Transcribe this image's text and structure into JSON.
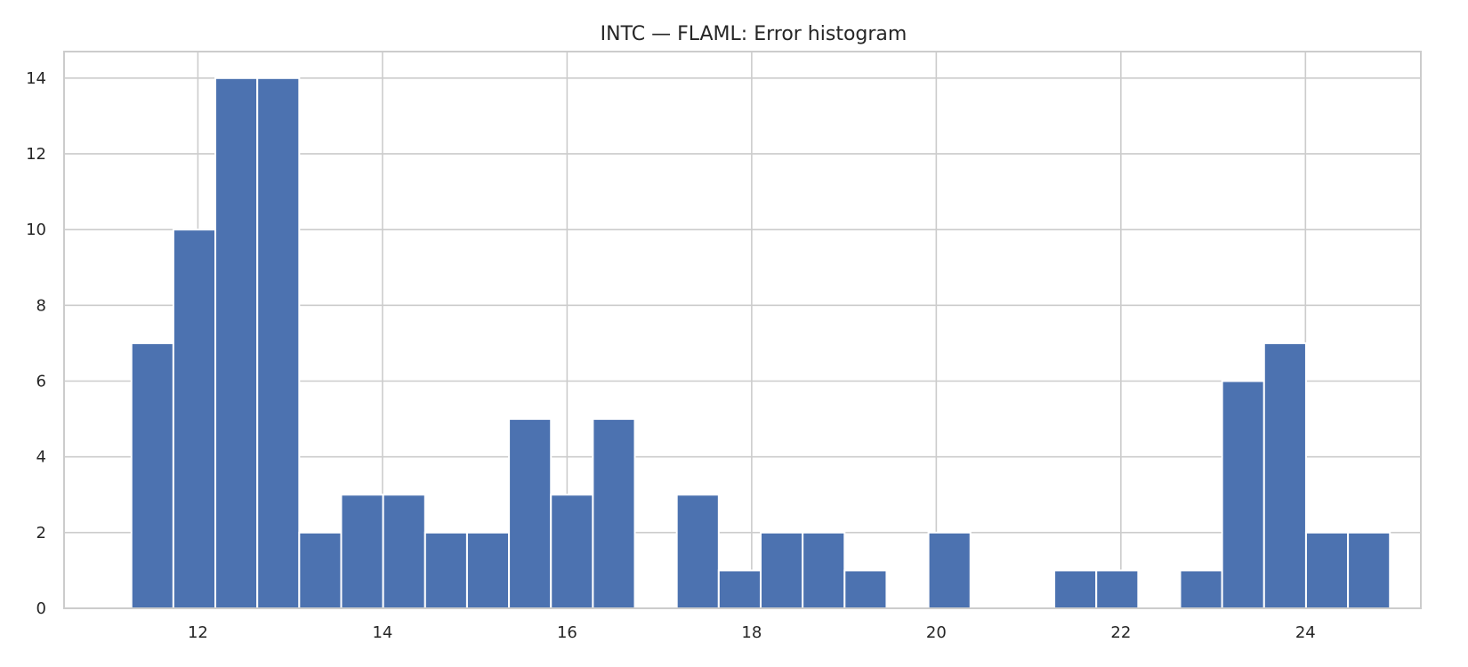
{
  "chart_data": {
    "type": "bar",
    "title": "INTC — FLAML: Error histogram",
    "xlabel": "",
    "ylabel": "",
    "xlim": [
      10.55,
      25.25
    ],
    "ylim": [
      0,
      14.7
    ],
    "x_ticks": [
      12,
      14,
      16,
      18,
      20,
      22,
      24
    ],
    "y_ticks": [
      0,
      2,
      4,
      6,
      8,
      10,
      12,
      14
    ],
    "bin_start": 11.28,
    "bin_width": 0.4545,
    "values": [
      7,
      10,
      14,
      14,
      2,
      3,
      3,
      2,
      2,
      5,
      3,
      5,
      0,
      3,
      1,
      2,
      2,
      1,
      0,
      2,
      0,
      0,
      1,
      1,
      0,
      1,
      6,
      7,
      2,
      2
    ],
    "grid": true,
    "legend": "none",
    "bar_color": "#4c72b0"
  }
}
